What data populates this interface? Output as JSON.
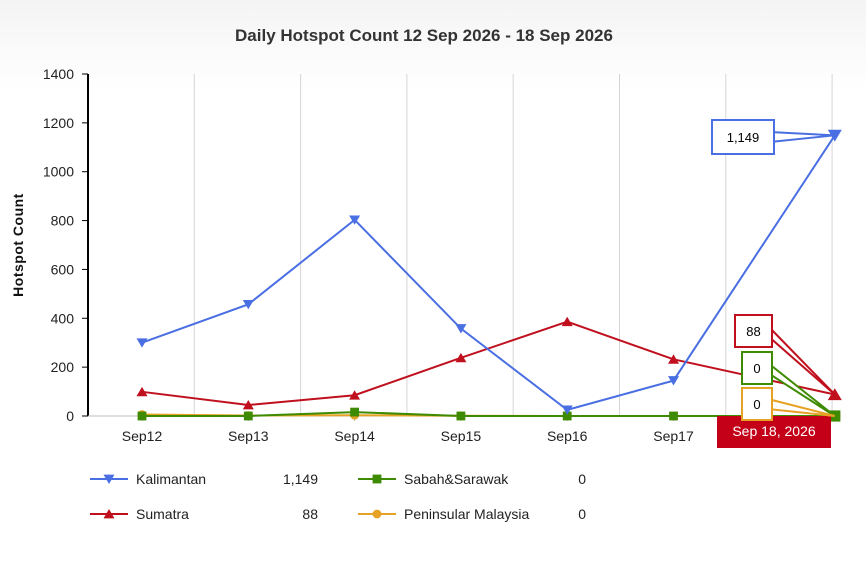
{
  "chart_data": {
    "type": "line",
    "title": "Daily Hotspot Count 12 Sep 2026 - 18 Sep 2026",
    "xlabel": "",
    "ylabel": "Hotspot Count",
    "categories": [
      "Sep12",
      "Sep13",
      "Sep14",
      "Sep15",
      "Sep16",
      "Sep17",
      "Sep18"
    ],
    "ylim": [
      0,
      1400
    ],
    "yticks": [
      0,
      200,
      400,
      600,
      800,
      1000,
      1200,
      1400
    ],
    "grid": true,
    "legend_position": "bottom",
    "series": [
      {
        "name": "Kalimantan",
        "values": [
          300,
          457,
          803,
          358,
          25,
          145,
          1149
        ],
        "color": "#4a6fe3",
        "marker": "triangle-down",
        "legend_value": "1,149"
      },
      {
        "name": "Sumatra",
        "values": [
          99,
          45,
          85,
          238,
          386,
          232,
          88
        ],
        "color": "#c0101e",
        "marker": "triangle-up",
        "legend_value": "88"
      },
      {
        "name": "Sabah&Sarawak",
        "values": [
          0,
          0,
          16,
          0,
          0,
          0,
          0
        ],
        "color": "#3e8a00",
        "marker": "square",
        "legend_value": "0"
      },
      {
        "name": "Peninsular Malaysia",
        "values": [
          6,
          2,
          3,
          1,
          0,
          0,
          0
        ],
        "color": "#e6a224",
        "marker": "circle",
        "legend_value": "0"
      }
    ],
    "tooltips": [
      {
        "series": "Kalimantan",
        "text": "1,149"
      },
      {
        "series": "Sumatra",
        "text": "88"
      },
      {
        "series": "Sabah&Sarawak",
        "text": "0"
      },
      {
        "series": "Peninsular Malaysia",
        "text": "0"
      }
    ],
    "crosshair_label": "Sep 18, 2026",
    "crosshair_color": "#c40018"
  }
}
